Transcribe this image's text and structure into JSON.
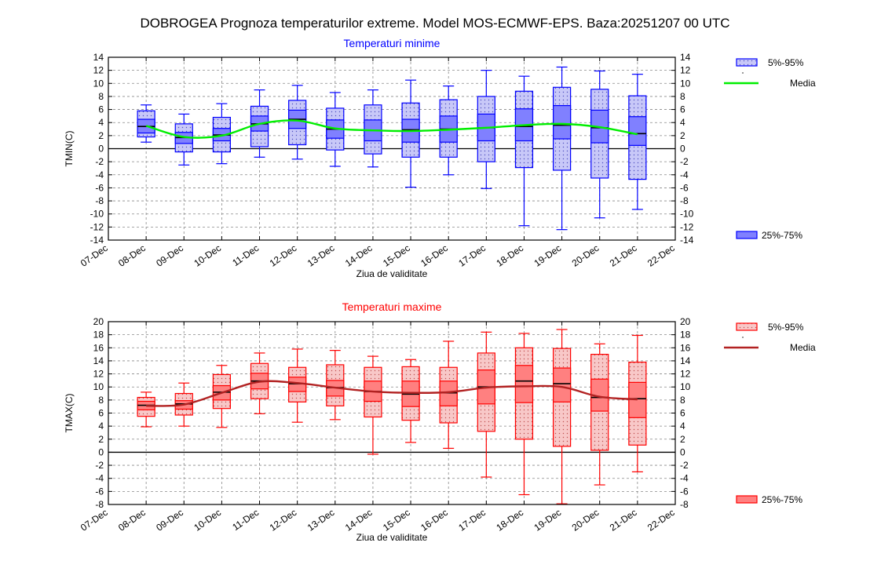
{
  "title": "DOBROGEA  Prognoza temperaturilor extreme.  Model MOS-ECMWF-EPS. Baza:20251207 00 UTC",
  "chart_data": [
    {
      "type": "boxplot",
      "title": "Temperaturi minime",
      "title_color": "#0000ff",
      "xlabel": "Ziua de validitate",
      "ylabel": "TMIN(C)",
      "ylim": [
        -14,
        14
      ],
      "ytick_step": 2,
      "xtick_labels": [
        "07-Dec",
        "08-Dec",
        "09-Dec",
        "10-Dec",
        "11-Dec",
        "12-Dec",
        "13-Dec",
        "14-Dec",
        "15-Dec",
        "16-Dec",
        "17-Dec",
        "18-Dec",
        "19-Dec",
        "20-Dec",
        "21-Dec",
        "22-Dec"
      ],
      "box_color": "#0000ff",
      "fill_25_75": "#8080ff",
      "fill_5_95": "#c8c8f8",
      "mean_color": "#00ee00",
      "legend": {
        "p5_95": "5%-95%",
        "mean": "Media",
        "p25_75": "25%-75%"
      },
      "days": [
        {
          "x": 1,
          "min": 1.0,
          "p5": 1.8,
          "p25": 2.4,
          "median": 3.4,
          "p75": 4.5,
          "p95": 5.8,
          "max": 6.7
        },
        {
          "x": 2,
          "min": -2.5,
          "p5": -0.5,
          "p25": 0.8,
          "median": 1.7,
          "p75": 2.5,
          "p95": 3.8,
          "max": 5.3
        },
        {
          "x": 3,
          "min": -2.3,
          "p5": -0.5,
          "p25": 1.2,
          "median": 2.1,
          "p75": 3.1,
          "p95": 4.8,
          "max": 6.9
        },
        {
          "x": 4,
          "min": -1.3,
          "p5": 0.3,
          "p25": 2.7,
          "median": 3.8,
          "p75": 5.0,
          "p95": 6.5,
          "max": 9.0
        },
        {
          "x": 5,
          "min": -1.6,
          "p5": 0.6,
          "p25": 3.1,
          "median": 4.5,
          "p75": 5.9,
          "p95": 7.4,
          "max": 9.7
        },
        {
          "x": 6,
          "min": -2.7,
          "p5": -0.2,
          "p25": 1.6,
          "median": 3.0,
          "p75": 4.4,
          "p95": 6.2,
          "max": 8.6
        },
        {
          "x": 7,
          "min": -2.8,
          "p5": -0.8,
          "p25": 1.2,
          "median": 2.8,
          "p75": 4.4,
          "p95": 6.7,
          "max": 9.0
        },
        {
          "x": 8,
          "min": -5.9,
          "p5": -1.3,
          "p25": 1.0,
          "median": 2.9,
          "p75": 4.5,
          "p95": 7.0,
          "max": 10.5
        },
        {
          "x": 9,
          "min": -4.0,
          "p5": -1.3,
          "p25": 1.0,
          "median": 3.0,
          "p75": 5.0,
          "p95": 7.5,
          "max": 9.6
        },
        {
          "x": 10,
          "min": -6.1,
          "p5": -2.0,
          "p25": 1.2,
          "median": 3.2,
          "p75": 5.3,
          "p95": 8.0,
          "max": 12.0
        },
        {
          "x": 11,
          "min": -11.8,
          "p5": -2.9,
          "p25": 1.2,
          "median": 3.4,
          "p75": 6.1,
          "p95": 8.8,
          "max": 11.1
        },
        {
          "x": 12,
          "min": -12.4,
          "p5": -3.3,
          "p25": 1.5,
          "median": 3.6,
          "p75": 6.6,
          "p95": 9.4,
          "max": 12.5
        },
        {
          "x": 13,
          "min": -10.6,
          "p5": -4.5,
          "p25": 0.9,
          "median": 3.2,
          "p75": 5.9,
          "p95": 9.1,
          "max": 11.9
        },
        {
          "x": 14,
          "min": -9.3,
          "p5": -4.7,
          "p25": 0.5,
          "median": 2.3,
          "p75": 4.9,
          "p95": 8.1,
          "max": 11.4
        }
      ],
      "mean": [
        3.5,
        1.8,
        2.0,
        3.8,
        4.3,
        3.1,
        2.8,
        2.7,
        2.9,
        3.2,
        3.6,
        3.8,
        3.3,
        2.2
      ]
    },
    {
      "type": "boxplot",
      "title": "Temperaturi maxime",
      "title_color": "#ff0000",
      "xlabel": "Ziua de validitate",
      "ylabel": "TMAX(C)",
      "ylim": [
        -8,
        20
      ],
      "ytick_step": 2,
      "xtick_labels": [
        "07-Dec",
        "08-Dec",
        "09-Dec",
        "10-Dec",
        "11-Dec",
        "12-Dec",
        "13-Dec",
        "14-Dec",
        "15-Dec",
        "16-Dec",
        "17-Dec",
        "18-Dec",
        "19-Dec",
        "20-Dec",
        "21-Dec",
        "22-Dec"
      ],
      "box_color": "#ff0000",
      "fill_25_75": "#ff8080",
      "fill_5_95": "#f8c8c8",
      "mean_color": "#b22222",
      "legend": {
        "p5_95": "5%-95%",
        "mean": "Media",
        "p25_75": "25%-75%"
      },
      "days": [
        {
          "x": 1,
          "min": 3.9,
          "p5": 5.5,
          "p25": 6.5,
          "median": 7.2,
          "p75": 7.8,
          "p95": 8.4,
          "max": 9.2
        },
        {
          "x": 2,
          "min": 4.0,
          "p5": 5.7,
          "p25": 6.6,
          "median": 7.4,
          "p75": 7.9,
          "p95": 9.0,
          "max": 10.6
        },
        {
          "x": 3,
          "min": 3.8,
          "p5": 6.7,
          "p25": 8.0,
          "median": 9.2,
          "p75": 10.2,
          "p95": 11.9,
          "max": 13.3
        },
        {
          "x": 4,
          "min": 5.9,
          "p5": 8.2,
          "p25": 9.7,
          "median": 10.9,
          "p75": 12.1,
          "p95": 13.6,
          "max": 15.2
        },
        {
          "x": 5,
          "min": 4.6,
          "p5": 7.7,
          "p25": 9.3,
          "median": 10.5,
          "p75": 11.5,
          "p95": 13.0,
          "max": 15.8
        },
        {
          "x": 6,
          "min": 5.0,
          "p5": 7.1,
          "p25": 8.6,
          "median": 9.9,
          "p75": 11.0,
          "p95": 13.4,
          "max": 15.6
        },
        {
          "x": 7,
          "min": -0.3,
          "p5": 5.4,
          "p25": 7.8,
          "median": 9.3,
          "p75": 10.9,
          "p95": 13.0,
          "max": 14.7
        },
        {
          "x": 8,
          "min": 1.5,
          "p5": 4.9,
          "p25": 7.0,
          "median": 8.9,
          "p75": 10.9,
          "p95": 13.1,
          "max": 14.2
        },
        {
          "x": 9,
          "min": 0.6,
          "p5": 4.5,
          "p25": 7.1,
          "median": 9.1,
          "p75": 10.9,
          "p95": 13.0,
          "max": 17.0
        },
        {
          "x": 10,
          "min": -3.8,
          "p5": 3.2,
          "p25": 7.4,
          "median": 10.0,
          "p75": 12.6,
          "p95": 15.2,
          "max": 18.4
        },
        {
          "x": 11,
          "min": -6.5,
          "p5": 2.0,
          "p25": 7.6,
          "median": 10.9,
          "p75": 13.3,
          "p95": 16.0,
          "max": 18.2
        },
        {
          "x": 12,
          "min": -7.9,
          "p5": 0.9,
          "p25": 7.7,
          "median": 10.5,
          "p75": 12.9,
          "p95": 15.9,
          "max": 18.8
        },
        {
          "x": 13,
          "min": -5.0,
          "p5": 0.3,
          "p25": 6.3,
          "median": 8.4,
          "p75": 11.2,
          "p95": 15.0,
          "max": 16.6
        },
        {
          "x": 14,
          "min": -3.0,
          "p5": 1.1,
          "p25": 5.3,
          "median": 8.2,
          "p75": 10.7,
          "p95": 13.8,
          "max": 17.9
        }
      ],
      "mean": [
        7.1,
        7.3,
        9.1,
        10.8,
        10.6,
        9.9,
        9.3,
        9.1,
        9.2,
        9.9,
        10.1,
        10.0,
        8.5,
        8.1
      ]
    }
  ]
}
